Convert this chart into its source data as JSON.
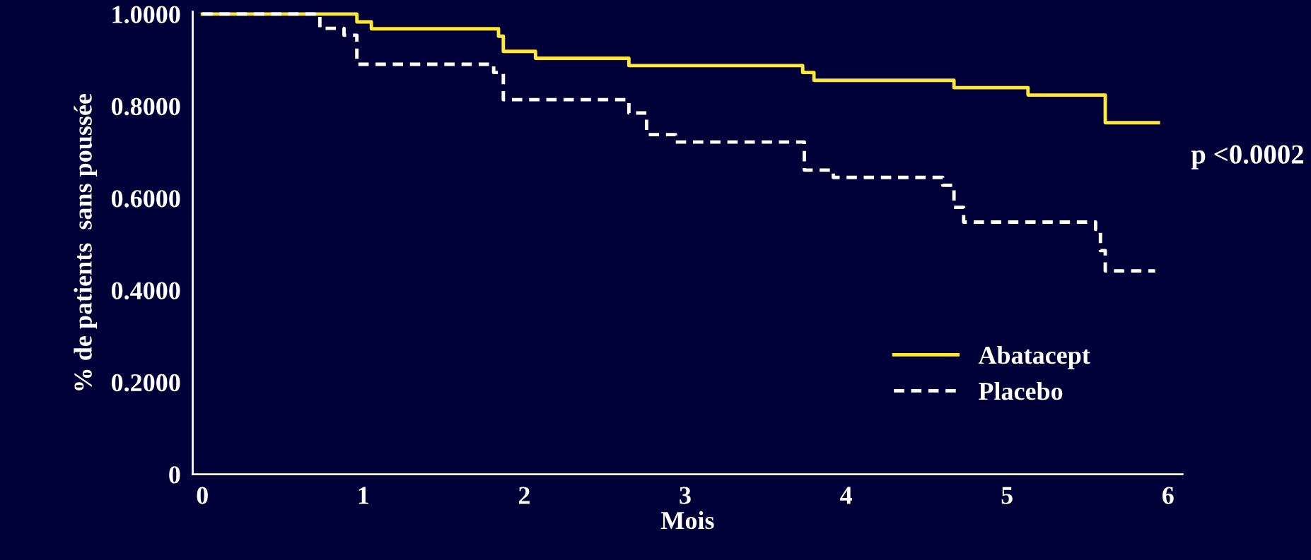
{
  "chart_data": {
    "type": "step",
    "xlabel": "Mois",
    "ylabel": "% de patients  sans poussée",
    "xlim": [
      -0.06,
      6.09
    ],
    "xticks": [
      0,
      1,
      2,
      3,
      4,
      5,
      6
    ],
    "ylim": [
      0,
      1.005
    ],
    "yticks": [
      {
        "value": 0,
        "label": "0"
      },
      {
        "value": 0.2,
        "label": "0.2000"
      },
      {
        "value": 0.4,
        "label": "0.4000"
      },
      {
        "value": 0.6,
        "label": "0.6000"
      },
      {
        "value": 0.8,
        "label": "0.8000"
      },
      {
        "value": 1.0,
        "label": "1.0000"
      }
    ],
    "grid": false,
    "legend": "bottom right",
    "annotations": [
      "p <0.0002"
    ],
    "series": [
      {
        "name": "Abatacept",
        "color": "#ffe83a",
        "line_style": "solid",
        "x": [
          0,
          0.96,
          1.05,
          1.84,
          1.87,
          2.07,
          2.65,
          3.73,
          3.8,
          4.67,
          5.13,
          5.61,
          5.94
        ],
        "values": [
          1.0,
          0.983,
          0.968,
          0.952,
          0.919,
          0.904,
          0.888,
          0.873,
          0.856,
          0.84,
          0.824,
          0.764,
          0.764
        ]
      },
      {
        "name": "Placebo",
        "color": "#ffffff",
        "line_style": "dashed",
        "x": [
          0,
          0.73,
          0.88,
          0.96,
          1.81,
          1.87,
          2.65,
          2.76,
          2.94,
          3.74,
          3.92,
          4.6,
          4.67,
          4.73,
          5.55,
          5.58,
          5.61,
          5.92
        ],
        "values": [
          1.0,
          0.969,
          0.954,
          0.891,
          0.873,
          0.814,
          0.785,
          0.738,
          0.722,
          0.661,
          0.645,
          0.628,
          0.58,
          0.548,
          0.532,
          0.486,
          0.442,
          0.442
        ]
      }
    ]
  }
}
